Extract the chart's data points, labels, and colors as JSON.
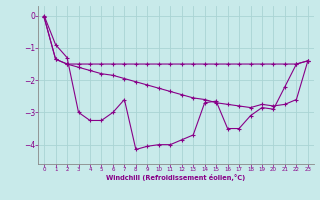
{
  "xlabel": "Windchill (Refroidissement éolien,°C)",
  "background_color": "#c8eaea",
  "grid_color": "#aad4d4",
  "line_color": "#880088",
  "spine_color": "#888888",
  "xmin": -0.5,
  "xmax": 23.5,
  "ymin": -4.6,
  "ymax": 0.3,
  "yticks": [
    0,
    -1,
    -2,
    -3,
    -4
  ],
  "xticks": [
    0,
    1,
    2,
    3,
    4,
    5,
    6,
    7,
    8,
    9,
    10,
    11,
    12,
    13,
    14,
    15,
    16,
    17,
    18,
    19,
    20,
    21,
    22,
    23
  ],
  "line1_x": [
    0,
    1,
    2,
    3,
    4,
    5,
    6,
    7,
    8,
    9,
    10,
    11,
    12,
    13,
    14,
    15,
    16,
    17,
    18,
    19,
    20,
    21,
    22,
    23
  ],
  "line1_y": [
    0.0,
    -0.9,
    -1.3,
    -3.0,
    -3.25,
    -3.25,
    -3.0,
    -2.6,
    -4.15,
    -4.05,
    -4.0,
    -4.0,
    -3.85,
    -3.7,
    -2.7,
    -2.65,
    -3.5,
    -3.5,
    -3.1,
    -2.85,
    -2.9,
    -2.2,
    -1.5,
    -1.4
  ],
  "line2_x": [
    0,
    1,
    2,
    3,
    4,
    5,
    6,
    7,
    8,
    9,
    10,
    11,
    12,
    13,
    14,
    15,
    16,
    17,
    18,
    19,
    20,
    21,
    22,
    23
  ],
  "line2_y": [
    -0.05,
    -1.35,
    -1.5,
    -1.5,
    -1.5,
    -1.5,
    -1.5,
    -1.5,
    -1.5,
    -1.5,
    -1.5,
    -1.5,
    -1.5,
    -1.5,
    -1.5,
    -1.5,
    -1.5,
    -1.5,
    -1.5,
    -1.5,
    -1.5,
    -1.5,
    -1.5,
    -1.4
  ],
  "line3_x": [
    0,
    1,
    2,
    3,
    4,
    5,
    6,
    7,
    8,
    9,
    10,
    11,
    12,
    13,
    14,
    15,
    16,
    17,
    18,
    19,
    20,
    21,
    22,
    23
  ],
  "line3_y": [
    -0.05,
    -1.35,
    -1.5,
    -1.6,
    -1.7,
    -1.8,
    -1.85,
    -1.95,
    -2.05,
    -2.15,
    -2.25,
    -2.35,
    -2.45,
    -2.55,
    -2.6,
    -2.7,
    -2.75,
    -2.8,
    -2.85,
    -2.75,
    -2.8,
    -2.75,
    -2.6,
    -1.4
  ]
}
